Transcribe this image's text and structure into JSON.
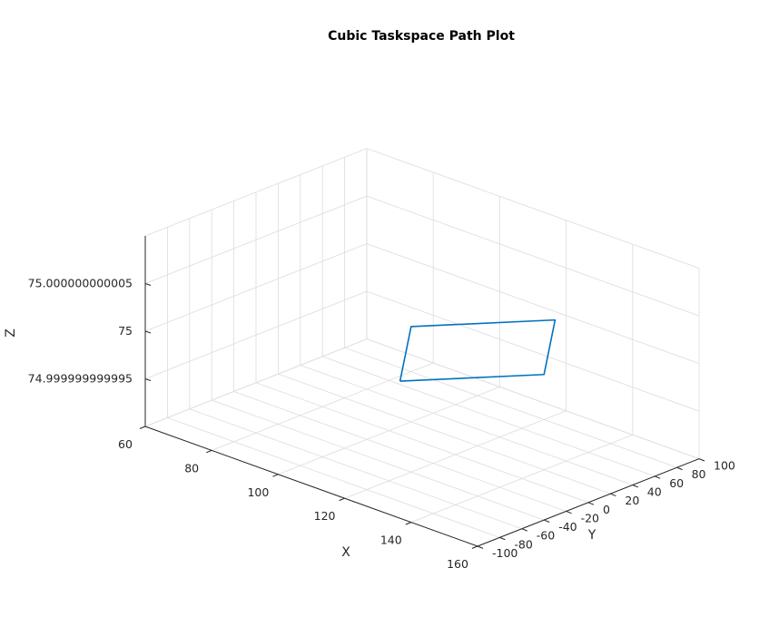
{
  "chart_data": {
    "type": "line",
    "title": "Cubic Taskspace Path Plot",
    "xlabel": "X",
    "ylabel": "Y",
    "zlabel": "Z",
    "xlim": [
      60,
      160
    ],
    "ylim": [
      -100,
      100
    ],
    "zlim": [
      74.99999999999,
      75.00000000001
    ],
    "x_ticks": [
      "60",
      "80",
      "100",
      "120",
      "140",
      "160"
    ],
    "y_ticks": [
      "-100",
      "-80",
      "-60",
      "-40",
      "-20",
      "0",
      "20",
      "40",
      "60",
      "80",
      "100"
    ],
    "z_ticks": [
      "74.999999999995",
      "75",
      "75.000000000005"
    ],
    "grid": true,
    "series": [
      {
        "color": "#0072BD",
        "x": [
          120,
          100,
          120,
          140,
          120
        ],
        "y": [
          -50,
          20,
          90,
          20,
          -50
        ],
        "z": [
          75,
          75,
          75,
          75,
          75
        ]
      }
    ]
  }
}
